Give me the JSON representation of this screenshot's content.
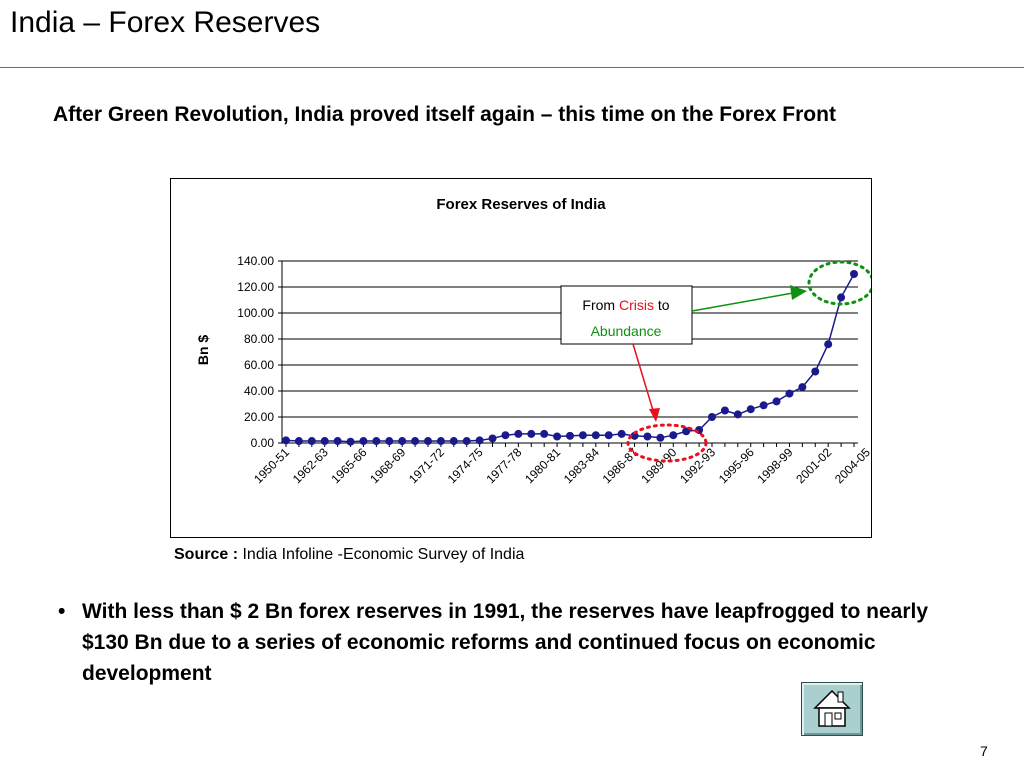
{
  "slide": {
    "title": "India – Forex Reserves",
    "subtitle": "After Green Revolution, India proved itself again – this time on the Forex Front",
    "source_label": "Source :",
    "source_text": "India Infoline -Economic Survey of India",
    "bullet_symbol": "•",
    "bullet": "With less than $ 2 Bn forex reserves in 1991, the reserves have leapfrogged to nearly $130 Bn due to a series of economic reforms and continued focus on economic development",
    "page_number": "7",
    "home_icon": "home-icon"
  },
  "annotation": {
    "from": "From",
    "crisis": "Crisis",
    "to": "to",
    "abundance": "Abundance",
    "crisis_color": "#e8101a",
    "abundance_color": "#109010"
  },
  "chart_data": {
    "type": "line",
    "title": "Forex Reserves of India",
    "ylabel": "Bn $",
    "xlabel": "",
    "ylim": [
      0,
      140
    ],
    "y_ticks": [
      "0.00",
      "20.00",
      "40.00",
      "60.00",
      "80.00",
      "100.00",
      "120.00",
      "140.00"
    ],
    "grid": true,
    "legend": "none",
    "x_tick_labels": [
      "1950-51",
      "1962-63",
      "1965-66",
      "1968-69",
      "1971-72",
      "1974-75",
      "1977-78",
      "1980-81",
      "1983-84",
      "1986-87",
      "1989-90",
      "1992-93",
      "1995-96",
      "1998-99",
      "2001-02",
      "2004-05"
    ],
    "series": [
      {
        "color": "#1a1a8c",
        "values": [
          2.0,
          1.5,
          1.5,
          1.5,
          1.5,
          1.0,
          1.5,
          1.5,
          1.5,
          1.5,
          1.5,
          1.5,
          1.5,
          1.5,
          1.5,
          2.0,
          3.5,
          6.0,
          7.0,
          7.0,
          7.0,
          5.0,
          5.5,
          6.0,
          6.0,
          6.0,
          7.0,
          5.5,
          5.0,
          4.0,
          6.0,
          9.0,
          10.0,
          20.0,
          25.0,
          22.0,
          26.0,
          29.0,
          32.0,
          38.0,
          43.0,
          55.0,
          76.0,
          112.0,
          130.0
        ]
      }
    ]
  }
}
